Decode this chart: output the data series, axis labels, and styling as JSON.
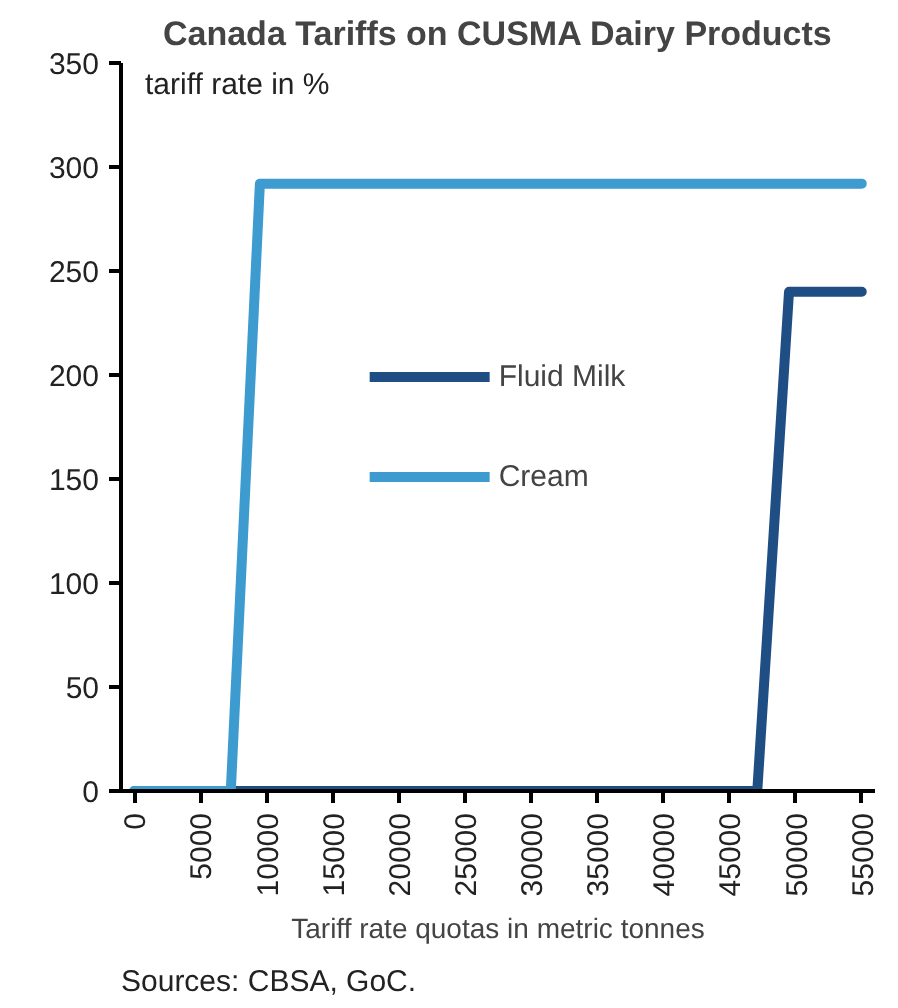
{
  "chart_data": {
    "type": "line",
    "title": "Canada Tariffs on CUSMA Dairy Products",
    "ylabel": "tariff rate in %",
    "xlabel": "Tariff rate quotas in metric tonnes",
    "annotations": [
      "Sources: CBSA, GoC."
    ],
    "series": [
      {
        "name": "Fluid Milk",
        "color": "#1f4e85",
        "x": [
          0,
          47100,
          49500,
          55000
        ],
        "values": [
          0,
          0,
          240,
          240
        ]
      },
      {
        "name": "Cream",
        "color": "#3d9bd0",
        "x": [
          0,
          7300,
          9500,
          55000
        ],
        "values": [
          0,
          0,
          292,
          292
        ]
      }
    ],
    "xlim": [
      -1000,
      56000
    ],
    "xticks": [
      0,
      5000,
      10000,
      15000,
      20000,
      25000,
      30000,
      35000,
      40000,
      45000,
      50000,
      55000
    ],
    "ylim": [
      0,
      350
    ],
    "yticks": [
      0,
      50,
      100,
      150,
      200,
      250,
      300,
      350
    ],
    "grid": false,
    "legend": "center",
    "marker": "none",
    "line_style": "solid"
  }
}
